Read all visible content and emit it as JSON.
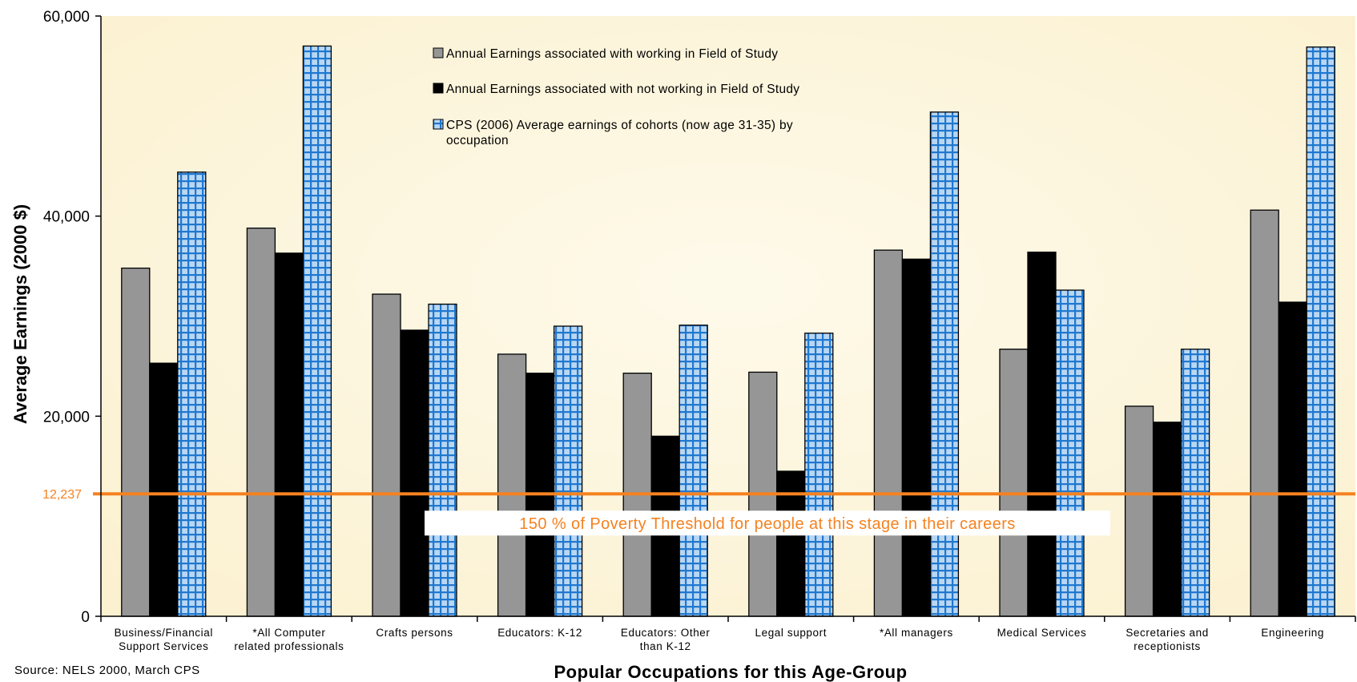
{
  "chart_data": {
    "type": "bar",
    "ylabel": "Average Earnings (2000 $)",
    "xlabel": "Popular Occupations for this Age-Group",
    "source": "Source: NELS 2000, March CPS",
    "ylim": [
      0,
      60000
    ],
    "yticks": [
      {
        "value": 0,
        "label": "0"
      },
      {
        "value": 20000,
        "label": "20,000"
      },
      {
        "value": 40000,
        "label": "40,000"
      },
      {
        "value": 60000,
        "label": "60,000"
      }
    ],
    "categories": [
      [
        "Business/Financial",
        "Support Services"
      ],
      [
        "*All Computer",
        "related professionals"
      ],
      [
        "Crafts persons"
      ],
      [
        "Educators: K-12"
      ],
      [
        "Educators: Other",
        "than K-12"
      ],
      [
        "Legal support"
      ],
      [
        "*All managers"
      ],
      [
        "Medical Services"
      ],
      [
        "Secretaries and",
        "receptionists"
      ],
      [
        "Engineering"
      ]
    ],
    "series": [
      {
        "name": "Annual Earnings associated with working in Field of Study",
        "color": "#969696",
        "pattern": "solid",
        "values": [
          34800,
          38800,
          32200,
          26200,
          24300,
          24400,
          36600,
          26700,
          21000,
          40600
        ]
      },
      {
        "name": "Annual Earnings associated with not working in Field of Study",
        "color": "#000000",
        "pattern": "solid",
        "values": [
          25300,
          36300,
          28600,
          24300,
          18000,
          14500,
          35700,
          36400,
          19400,
          31400
        ]
      },
      {
        "name": "CPS (2006) Average earnings of cohorts (now age 31-35) by occupation",
        "name_lines": [
          "CPS (2006) Average earnings of cohorts (now age 31-35) by",
          "occupation"
        ],
        "color": "#1f7fd4",
        "pattern": "grid",
        "values": [
          44400,
          57000,
          31200,
          29000,
          29100,
          28300,
          50400,
          32600,
          26700,
          56900
        ]
      }
    ],
    "reference_line": {
      "value": 12237,
      "label": "12,237",
      "note": "150 % of Poverty Threshold for people at this stage in their careers",
      "color": "#f58220"
    },
    "grid": false,
    "legend_position": "top-center",
    "background_color": "#fdf6dc"
  }
}
